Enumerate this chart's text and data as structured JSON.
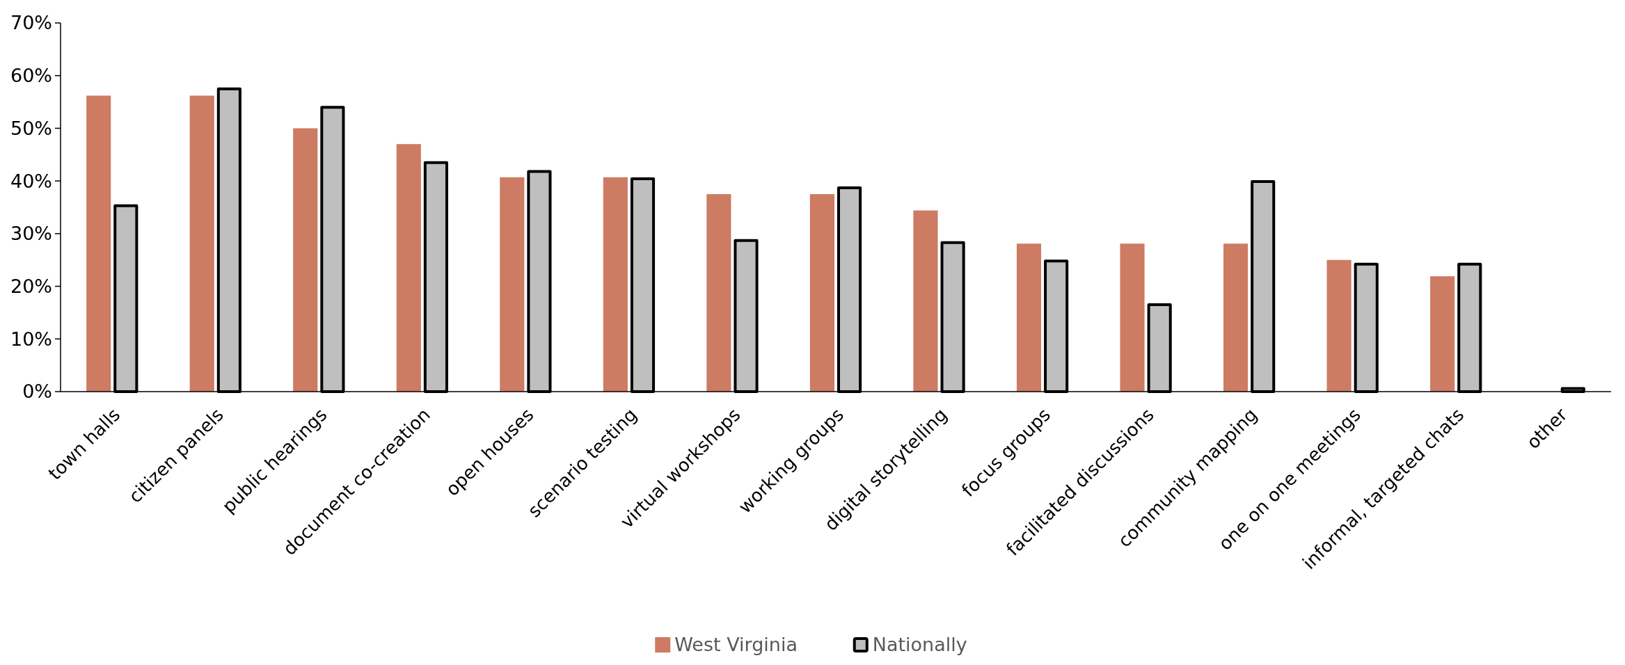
{
  "chart_data": {
    "type": "bar",
    "categories": [
      "town halls",
      "citizen panels",
      "public hearings",
      "document co-creation",
      "open houses",
      "scenario testing",
      "virtual workshops",
      "working groups",
      "digital storytelling",
      "focus groups",
      "facilitated discussions",
      "community mapping",
      "one on one meetings",
      "informal, targeted chats",
      "other"
    ],
    "series": [
      {
        "name": "West Virginia",
        "color": "#cd7b63",
        "values": [
          56.2,
          56.2,
          50,
          47,
          40.7,
          40.7,
          37.5,
          37.5,
          34.4,
          28.1,
          28.1,
          28.1,
          25,
          21.9,
          null
        ]
      },
      {
        "name": "Nationally",
        "color": "#bfbfbf",
        "values": [
          35.3,
          57.5,
          54,
          43.5,
          41.8,
          40.4,
          28.7,
          38.7,
          28.3,
          24.8,
          16.5,
          39.9,
          24.2,
          24.2,
          0.6
        ]
      }
    ],
    "ylim": [
      0,
      70
    ],
    "yticks": [
      {
        "value": 0,
        "label": "0%"
      },
      {
        "value": 10,
        "label": "10%"
      },
      {
        "value": 20,
        "label": "20%"
      },
      {
        "value": 30,
        "label": "30%"
      },
      {
        "value": 40,
        "label": "40%"
      },
      {
        "value": 50,
        "label": "50%"
      },
      {
        "value": 60,
        "label": "60%"
      },
      {
        "value": 70,
        "label": "70%"
      }
    ],
    "grid": false,
    "legend": "bottom"
  }
}
